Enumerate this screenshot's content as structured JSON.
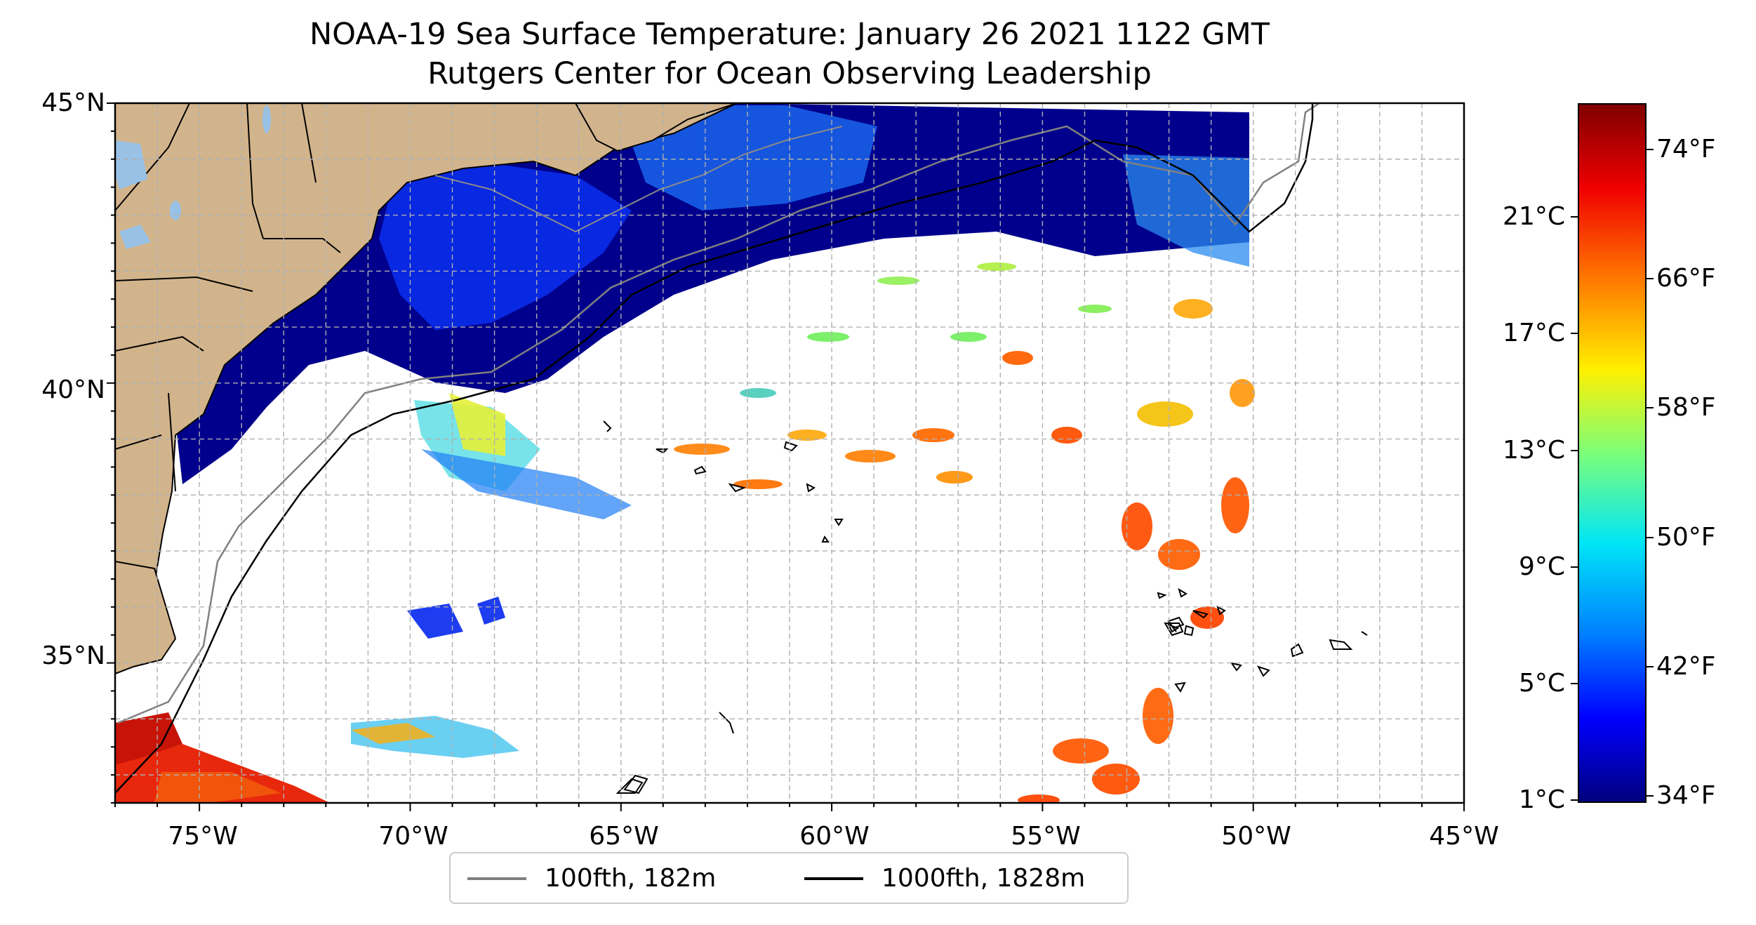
{
  "title": {
    "line1": "NOAA-19 Sea Surface Temperature: January 26 2021 1122 GMT",
    "line2": "Rutgers Center for Ocean Observing Leadership"
  },
  "map": {
    "lon_range": [
      -77,
      -45
    ],
    "lat_range": [
      32.5,
      45
    ],
    "x_ticks": [
      "75°W",
      "70°W",
      "65°W",
      "60°W",
      "55°W",
      "50°W",
      "45°W"
    ],
    "y_ticks": [
      "45°N",
      "40°N",
      "35°N"
    ],
    "land_color": "#d2b48c",
    "lake_color": "#99c1e6",
    "grid": "on, dashed gray every 1°",
    "background": "white (cloud/no data)"
  },
  "colorbar": {
    "colormap": "jet",
    "range_f": [
      33,
      78
    ],
    "celsius_ticks": [
      "1°C",
      "5°C",
      "9°C",
      "13°C",
      "17°C",
      "21°C"
    ],
    "fahrenheit_ticks": [
      "34°F",
      "42°F",
      "50°F",
      "58°F",
      "66°F",
      "74°F"
    ]
  },
  "legend": {
    "placement": "bottom-center",
    "items": [
      {
        "label": "100fth, 182m",
        "color": "#808080"
      },
      {
        "label": "1000fth, 1828m",
        "color": "#000000"
      }
    ]
  }
}
